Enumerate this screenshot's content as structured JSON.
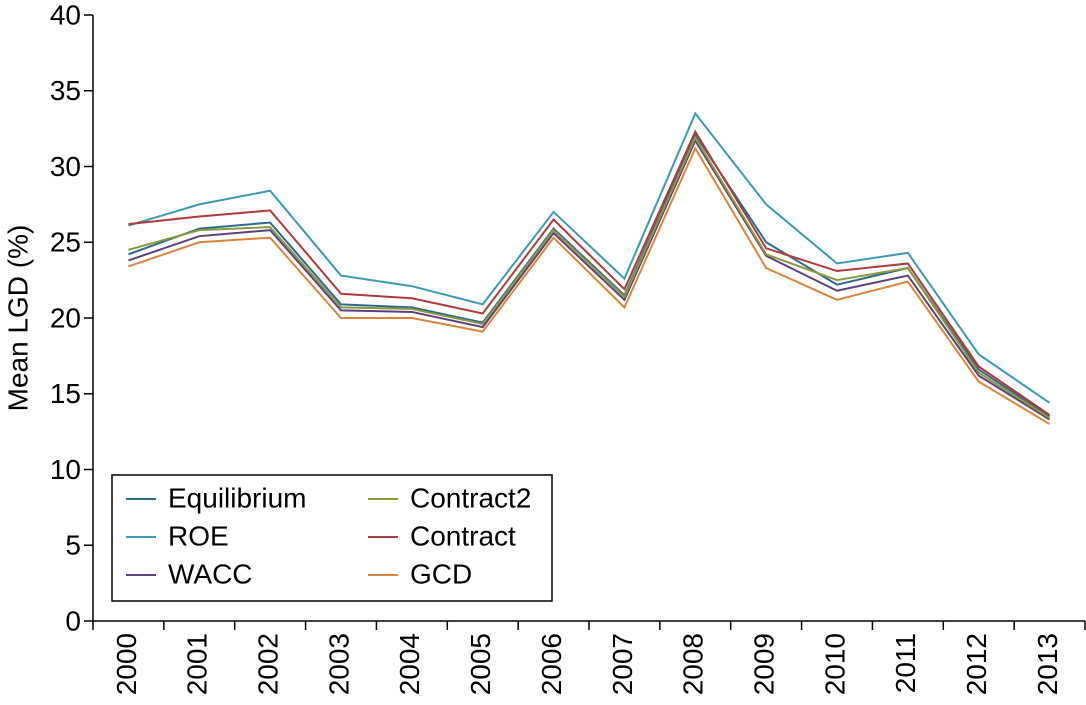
{
  "chart_data": {
    "type": "line",
    "y_label": "Mean LGD (%)",
    "categories": [
      "2000",
      "2001",
      "2002",
      "2003",
      "2004",
      "2005",
      "2006",
      "2007",
      "2008",
      "2009",
      "2010",
      "2011",
      "2012",
      "2013"
    ],
    "ylim": [
      0,
      40
    ],
    "yticks": [
      0,
      5,
      10,
      15,
      20,
      25,
      30,
      35,
      40
    ],
    "grid": false,
    "legend": "lower left",
    "series": [
      {
        "name": "Equilibrium",
        "color": "#2e6a90",
        "values": [
          24.2,
          25.9,
          26.3,
          20.9,
          20.7,
          19.7,
          25.9,
          21.5,
          32.1,
          25.0,
          22.2,
          23.3,
          16.6,
          13.5
        ]
      },
      {
        "name": "ROE",
        "color": "#3a9bb2",
        "values": [
          26.1,
          27.5,
          28.4,
          22.8,
          22.1,
          20.9,
          27.0,
          22.6,
          33.5,
          27.5,
          23.6,
          24.3,
          17.6,
          14.4
        ]
      },
      {
        "name": "WACC",
        "color": "#5e3f80",
        "values": [
          23.8,
          25.4,
          25.8,
          20.5,
          20.4,
          19.4,
          25.6,
          21.2,
          31.7,
          24.1,
          21.8,
          22.8,
          16.2,
          13.3
        ]
      },
      {
        "name": "Contract2",
        "color": "#8a9a3c",
        "values": [
          24.5,
          25.8,
          26.0,
          20.7,
          20.6,
          19.6,
          25.8,
          21.4,
          31.9,
          24.2,
          22.5,
          23.3,
          16.4,
          13.4
        ]
      },
      {
        "name": "Contract",
        "color": "#b03a3c",
        "values": [
          26.2,
          26.7,
          27.1,
          21.6,
          21.3,
          20.3,
          26.5,
          21.9,
          32.3,
          24.6,
          23.1,
          23.6,
          16.8,
          13.6
        ]
      },
      {
        "name": "GCD",
        "color": "#dc843c",
        "values": [
          23.4,
          25.0,
          25.3,
          20.0,
          20.0,
          19.1,
          25.3,
          20.7,
          31.2,
          23.3,
          21.2,
          22.4,
          15.8,
          13.0
        ]
      }
    ]
  }
}
